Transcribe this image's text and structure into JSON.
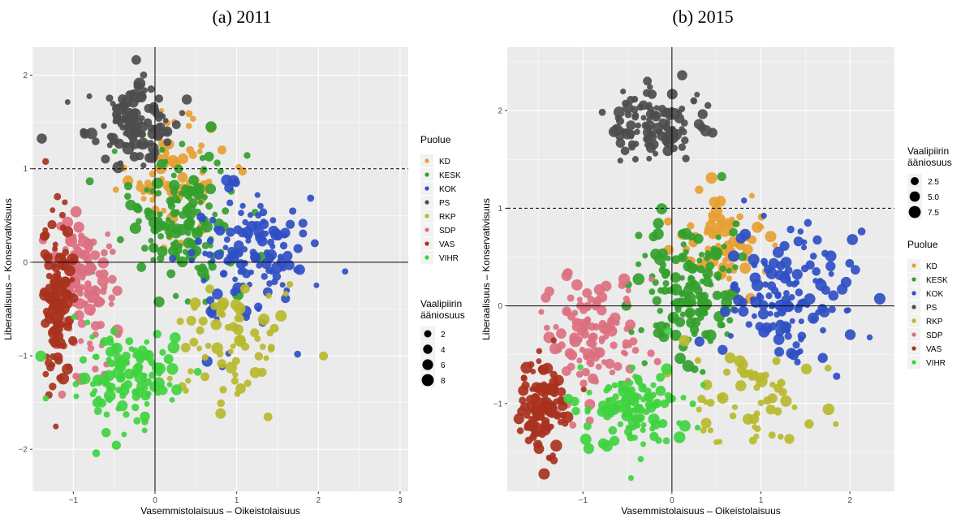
{
  "chart_data": [
    {
      "type": "scatter",
      "title": "(a) 2011",
      "xlabel": "Vasemmistolaisuus – Oikeistolaisuus",
      "ylabel": "Liberaalisuus – Konservativisuus",
      "xlim": [
        -1.5,
        3.1
      ],
      "ylim": [
        -2.45,
        2.3
      ],
      "x_ticks": [
        -1,
        0,
        1,
        2,
        3
      ],
      "y_ticks": [
        -2,
        -1,
        0,
        1,
        2
      ],
      "grid": true,
      "reference_lines": {
        "vertical": 0,
        "horizontal": 0,
        "dashed_horizontal": 1
      },
      "party_legend_title": "Puolue",
      "size_legend_title": "Vaalipiirin ääniosuus",
      "size_legend": [
        2,
        4,
        6,
        8
      ],
      "series": [
        {
          "name": "KD",
          "color": "#E6A033",
          "center": [
            0.2,
            0.95
          ],
          "spread": [
            0.55,
            0.55
          ],
          "n": 70
        },
        {
          "name": "KESK",
          "color": "#33A02C",
          "center": [
            0.35,
            0.45
          ],
          "spread": [
            0.55,
            0.6
          ],
          "n": 150
        },
        {
          "name": "KOK",
          "color": "#2F4FC4",
          "center": [
            1.05,
            0.05
          ],
          "spread": [
            0.65,
            0.65
          ],
          "n": 130
        },
        {
          "name": "PS",
          "color": "#4D4D4D",
          "center": [
            -0.3,
            1.5
          ],
          "spread": [
            0.45,
            0.35
          ],
          "n": 120
        },
        {
          "name": "RKP",
          "color": "#B8B82E",
          "center": [
            0.9,
            -0.9
          ],
          "spread": [
            0.7,
            0.6
          ],
          "n": 70
        },
        {
          "name": "SDP",
          "color": "#DC7080",
          "center": [
            -0.9,
            -0.2
          ],
          "spread": [
            0.35,
            0.6
          ],
          "n": 130
        },
        {
          "name": "VAS",
          "color": "#A8321E",
          "center": [
            -1.2,
            -0.4
          ],
          "spread": [
            0.15,
            0.7
          ],
          "n": 120
        },
        {
          "name": "VIHR",
          "color": "#3FD33F",
          "center": [
            -0.3,
            -1.25
          ],
          "spread": [
            0.55,
            0.45
          ],
          "n": 120
        }
      ]
    },
    {
      "type": "scatter",
      "title": "(b) 2015",
      "xlabel": "Vasemmistolaisuus – Oikeistolaisuus",
      "ylabel": "Liberaalisuus – Konservativisuus",
      "xlim": [
        -1.85,
        2.5
      ],
      "ylim": [
        -1.9,
        2.65
      ],
      "x_ticks": [
        -1,
        0,
        1,
        2
      ],
      "y_ticks": [
        -1,
        0,
        1,
        2
      ],
      "grid": true,
      "reference_lines": {
        "vertical": 0,
        "horizontal": 0,
        "dashed_horizontal": 1
      },
      "party_legend_title": "Puolue",
      "size_legend_title": "Vaalipiirin ääniosuus",
      "size_legend": [
        2.5,
        5.0,
        7.5
      ],
      "series": [
        {
          "name": "KD",
          "color": "#E6A033",
          "center": [
            0.6,
            0.65
          ],
          "spread": [
            0.45,
            0.4
          ],
          "n": 80
        },
        {
          "name": "KESK",
          "color": "#33A02C",
          "center": [
            0.2,
            0.2
          ],
          "spread": [
            0.45,
            0.55
          ],
          "n": 150
        },
        {
          "name": "KOK",
          "color": "#2F4FC4",
          "center": [
            1.3,
            0.05
          ],
          "spread": [
            0.55,
            0.6
          ],
          "n": 140
        },
        {
          "name": "PS",
          "color": "#4D4D4D",
          "center": [
            -0.15,
            1.85
          ],
          "spread": [
            0.45,
            0.3
          ],
          "n": 120
        },
        {
          "name": "RKP",
          "color": "#B8B82E",
          "center": [
            0.9,
            -1.0
          ],
          "spread": [
            0.6,
            0.5
          ],
          "n": 60
        },
        {
          "name": "SDP",
          "color": "#DC7080",
          "center": [
            -0.9,
            -0.3
          ],
          "spread": [
            0.45,
            0.55
          ],
          "n": 120
        },
        {
          "name": "VAS",
          "color": "#A8321E",
          "center": [
            -1.45,
            -1.05
          ],
          "spread": [
            0.2,
            0.4
          ],
          "n": 110
        },
        {
          "name": "VIHR",
          "color": "#3FD33F",
          "center": [
            -0.4,
            -1.05
          ],
          "spread": [
            0.5,
            0.4
          ],
          "n": 120
        }
      ]
    }
  ]
}
